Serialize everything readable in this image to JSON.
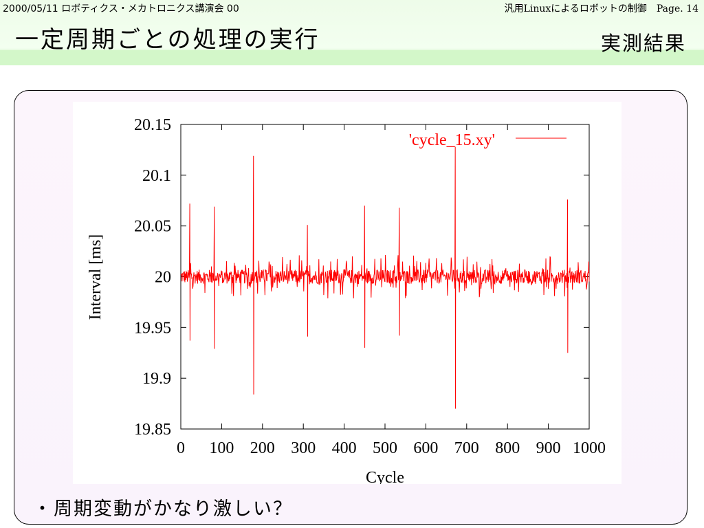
{
  "header": {
    "meta_left": "2000/05/11 ロボティクス・メカトロニクス講演会 00",
    "meta_right": "汎用Linuxによるロボットの制御",
    "page_label": "Page. 14",
    "title": "一定周期ごとの処理の実行",
    "subtitle": "実測結果"
  },
  "bullet": {
    "marker": "・",
    "text": "周期変動がかなり激しい？"
  },
  "colors": {
    "header_band": "#e8fbe2",
    "header_bar": "#d3f7c9",
    "content_bg": "#fbf4fc",
    "series": "#ff0000"
  },
  "chart_data": {
    "type": "line",
    "xlabel": "Cycle",
    "ylabel": "Interval [ms]",
    "xlim": [
      0,
      1000
    ],
    "ylim": [
      19.85,
      20.15
    ],
    "xticks": [
      "0",
      "100",
      "200",
      "300",
      "400",
      "500",
      "600",
      "700",
      "800",
      "900",
      "1000"
    ],
    "yticks": [
      "19.85",
      "19.9",
      "19.95",
      "20",
      "20.05",
      "20.1",
      "20.15"
    ],
    "grid": false,
    "legend_position": "top-right",
    "series": [
      {
        "name": "'cycle_15.xy'",
        "baseline": 20.0,
        "noise_amplitude": 0.007,
        "spikes": [
          {
            "x": 22,
            "high": 20.072,
            "low": 19.937
          },
          {
            "x": 82,
            "high": 20.069,
            "low": 19.929
          },
          {
            "x": 178,
            "high": 20.119,
            "low": 19.884
          },
          {
            "x": 310,
            "high": 20.051,
            "low": 19.941
          },
          {
            "x": 450,
            "high": 20.07,
            "low": 19.93
          },
          {
            "x": 535,
            "high": 20.068,
            "low": 19.942
          },
          {
            "x": 672,
            "high": 20.128,
            "low": 19.87
          },
          {
            "x": 947,
            "high": 20.076,
            "low": 19.925
          }
        ]
      }
    ]
  }
}
